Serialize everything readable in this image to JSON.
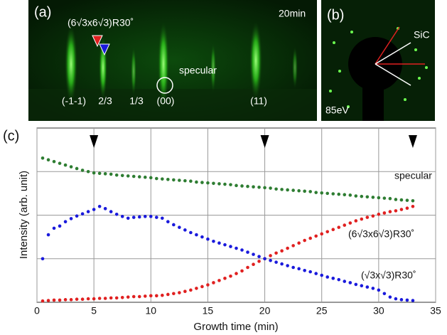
{
  "panels": {
    "a": {
      "label": "(a)",
      "time": "20min",
      "reconstruction": "(6√3x6√3)R30˚",
      "specular": "specular",
      "rods": [
        "(-1-1)",
        "2/3",
        "1/3",
        "(00)",
        "(11)"
      ]
    },
    "b": {
      "label": "(b)",
      "substrate": "SiC",
      "energy": "85eV"
    }
  },
  "chart_data": {
    "type": "scatter",
    "label": "(c)",
    "xlabel": "Growth time (min)",
    "ylabel": "Intensity (arb. unit)",
    "xlim": [
      0,
      35
    ],
    "xticks": [
      0,
      5,
      10,
      15,
      20,
      25,
      30,
      35
    ],
    "ylim": [
      0,
      4
    ],
    "grid": true,
    "markers": [
      5,
      20,
      33
    ],
    "x": [
      0.5,
      1,
      1.5,
      2,
      2.5,
      3,
      3.5,
      4,
      4.5,
      5,
      5.5,
      6,
      6.5,
      7,
      7.5,
      8,
      8.5,
      9,
      9.5,
      10,
      10.5,
      11,
      11.5,
      12,
      12.5,
      13,
      13.5,
      14,
      14.5,
      15,
      15.5,
      16,
      16.5,
      17,
      17.5,
      18,
      18.5,
      19,
      19.5,
      20,
      20.5,
      21,
      21.5,
      22,
      22.5,
      23,
      23.5,
      24,
      24.5,
      25,
      25.5,
      26,
      26.5,
      27,
      27.5,
      28,
      28.5,
      29,
      29.5,
      30,
      30.5,
      31,
      31.5,
      32,
      32.5,
      33
    ],
    "series": [
      {
        "name": "specular",
        "color": "#2e7d32",
        "values": [
          3.31,
          3.27,
          3.23,
          3.19,
          3.15,
          3.11,
          3.07,
          3.03,
          3.0,
          2.97,
          2.96,
          2.95,
          2.94,
          2.92,
          2.91,
          2.9,
          2.89,
          2.88,
          2.87,
          2.86,
          2.84,
          2.83,
          2.82,
          2.81,
          2.8,
          2.79,
          2.78,
          2.76,
          2.75,
          2.74,
          2.73,
          2.72,
          2.71,
          2.7,
          2.68,
          2.67,
          2.66,
          2.65,
          2.64,
          2.63,
          2.62,
          2.6,
          2.59,
          2.58,
          2.57,
          2.56,
          2.55,
          2.54,
          2.52,
          2.51,
          2.5,
          2.49,
          2.48,
          2.47,
          2.46,
          2.44,
          2.43,
          2.42,
          2.41,
          2.4,
          2.39,
          2.38,
          2.36,
          2.35,
          2.34,
          2.33
        ]
      },
      {
        "name": "(6√3x6√3)R30˚",
        "color": "#e02020",
        "values": [
          0.03,
          0.04,
          0.05,
          0.05,
          0.06,
          0.06,
          0.07,
          0.07,
          0.08,
          0.08,
          0.09,
          0.09,
          0.1,
          0.1,
          0.11,
          0.12,
          0.13,
          0.13,
          0.14,
          0.15,
          0.15,
          0.16,
          0.18,
          0.2,
          0.22,
          0.25,
          0.28,
          0.32,
          0.36,
          0.4,
          0.45,
          0.5,
          0.55,
          0.6,
          0.66,
          0.72,
          0.8,
          0.87,
          0.94,
          1.0,
          1.07,
          1.13,
          1.18,
          1.24,
          1.3,
          1.36,
          1.42,
          1.47,
          1.52,
          1.57,
          1.62,
          1.67,
          1.72,
          1.77,
          1.82,
          1.87,
          1.91,
          1.95,
          1.98,
          2.02,
          2.05,
          2.08,
          2.1,
          2.13,
          2.16,
          2.2
        ]
      },
      {
        "name": "(√3x√3)R30˚",
        "color": "#1a1adc",
        "values": [
          1.0,
          1.55,
          1.7,
          1.75,
          1.85,
          1.92,
          1.98,
          2.03,
          2.08,
          2.13,
          2.2,
          2.15,
          2.08,
          2.02,
          1.97,
          1.93,
          1.95,
          1.96,
          1.97,
          1.97,
          1.95,
          1.93,
          1.85,
          1.78,
          1.72,
          1.66,
          1.6,
          1.55,
          1.5,
          1.45,
          1.4,
          1.36,
          1.32,
          1.28,
          1.24,
          1.2,
          1.15,
          1.1,
          1.05,
          1.0,
          0.96,
          0.92,
          0.88,
          0.84,
          0.8,
          0.77,
          0.73,
          0.7,
          0.66,
          0.62,
          0.58,
          0.55,
          0.52,
          0.48,
          0.45,
          0.41,
          0.38,
          0.35,
          0.32,
          0.28,
          0.2,
          0.12,
          0.08,
          0.06,
          0.05,
          0.04
        ]
      }
    ]
  }
}
